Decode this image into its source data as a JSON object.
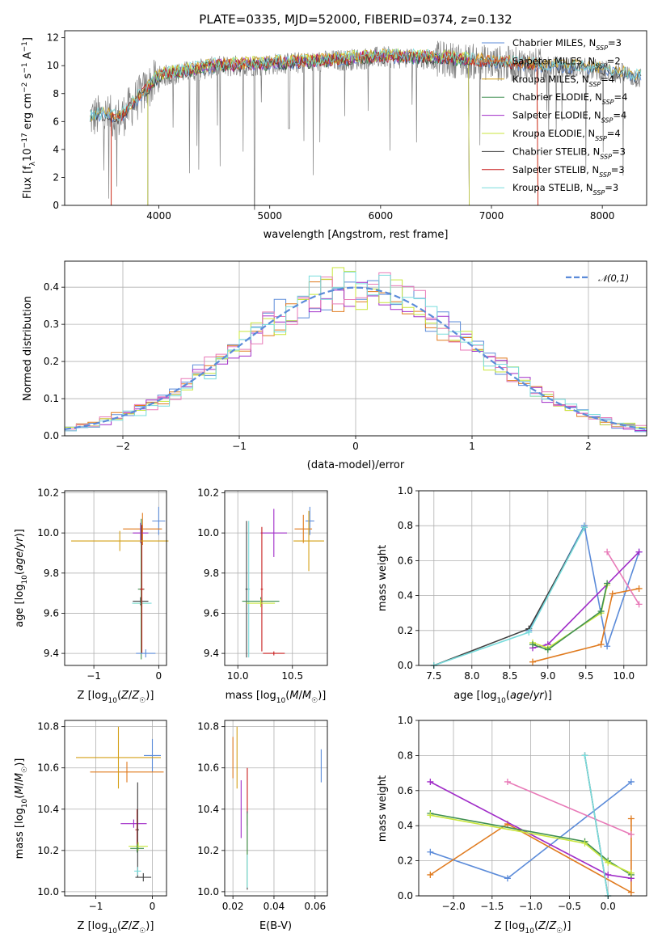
{
  "figure_title": "PLATE=0335, MJD=52000, FIBERID=0374, z=0.132",
  "colors": {
    "Chabrier MILES": "#5b8bd9",
    "Salpeter MILES": "#e07b1f",
    "Kroupa MILES": "#d4a017",
    "Chabrier ELODIE": "#3f8f50",
    "Salpeter ELODIE": "#a02cc8",
    "Kroupa ELODIE": "#c8e63c",
    "Chabrier STELIB": "#404040",
    "Salpeter STELIB": "#c81e1e",
    "Kroupa STELIB": "#78dcdc",
    "data": "#808080",
    "normal": "#5b8bd9"
  },
  "models": [
    "Chabrier MILES",
    "Salpeter MILES",
    "Kroupa MILES",
    "Chabrier ELODIE",
    "Salpeter ELODIE",
    "Kroupa ELODIE",
    "Chabrier STELIB",
    "Salpeter STELIB",
    "Kroupa STELIB"
  ],
  "chart_data": [
    {
      "type": "line",
      "title": "PLATE=0335, MJD=52000, FIBERID=0374, z=0.132",
      "xlabel": "wavelength [Angstrom, rest frame]",
      "ylabel": "Flux [fλ10⁻¹⁷ erg cm⁻² s⁻¹ A⁻¹]",
      "xlim": [
        3150,
        8400
      ],
      "ylim": [
        0,
        12.5
      ],
      "xticks": [
        4000,
        5000,
        6000,
        7000,
        8000
      ],
      "yticks": [
        0,
        2,
        4,
        6,
        8,
        10,
        12
      ],
      "legend_placement": "right",
      "legend": [
        {
          "model": "Chabrier MILES",
          "label": "Chabrier MILES, N",
          "sub": "SSP",
          "suffix": "=3"
        },
        {
          "model": "Salpeter MILES",
          "label": "Salpeter MILES, N",
          "sub": "SSP",
          "suffix": "=2"
        },
        {
          "model": "Kroupa MILES",
          "label": "Kroupa MILES, N",
          "sub": "SSP",
          "suffix": "=4"
        },
        {
          "model": "Chabrier ELODIE",
          "label": "Chabrier ELODIE, N",
          "sub": "SSP",
          "suffix": "=4"
        },
        {
          "model": "Salpeter ELODIE",
          "label": "Salpeter ELODIE, N",
          "sub": "SSP",
          "suffix": "=4"
        },
        {
          "model": "Kroupa ELODIE",
          "label": "Kroupa ELODIE, N",
          "sub": "SSP",
          "suffix": "=4"
        },
        {
          "model": "Chabrier STELIB",
          "label": "Chabrier STELIB, N",
          "sub": "SSP",
          "suffix": "=3"
        },
        {
          "model": "Salpeter STELIB",
          "label": "Salpeter STELIB, N",
          "sub": "SSP",
          "suffix": "=3"
        },
        {
          "model": "Kroupa STELIB",
          "label": "Kroupa STELIB, N",
          "sub": "SSP",
          "suffix": "=3"
        }
      ],
      "continuum": [
        [
          3380,
          6.3
        ],
        [
          3500,
          6.4
        ],
        [
          3650,
          6.2
        ],
        [
          3850,
          8.0
        ],
        [
          4000,
          9.2
        ],
        [
          4200,
          9.5
        ],
        [
          4500,
          9.9
        ],
        [
          5000,
          10.1
        ],
        [
          5500,
          10.3
        ],
        [
          6000,
          10.6
        ],
        [
          6500,
          10.5
        ],
        [
          7000,
          10.2
        ],
        [
          7400,
          10.0
        ],
        [
          8000,
          9.7
        ],
        [
          8350,
          9.1
        ]
      ],
      "model_ranges": {
        "Chabrier MILES": [
          3380,
          8350
        ],
        "Salpeter MILES": [
          3570,
          7420
        ],
        "Kroupa MILES": [
          3380,
          8350
        ],
        "Chabrier ELODIE": [
          3900,
          6800
        ],
        "Salpeter ELODIE": [
          3900,
          6800
        ],
        "Kroupa ELODIE": [
          3900,
          6800
        ],
        "Chabrier STELIB": [
          3380,
          8350
        ],
        "Salpeter STELIB": [
          3570,
          7420
        ],
        "Kroupa STELIB": [
          3380,
          8350
        ]
      }
    },
    {
      "type": "line",
      "xlabel": "(data-model)/error",
      "ylabel": "Normed distribution",
      "xlim": [
        -2.5,
        2.5
      ],
      "ylim": [
        0,
        0.47
      ],
      "xticks": [
        -2,
        -1,
        0,
        1,
        2
      ],
      "yticks": [
        0.0,
        0.1,
        0.2,
        0.3,
        0.4
      ],
      "legend": "𝒩(0,1)",
      "legend_placement": "top-right",
      "bin_width": 0.1
    },
    {
      "type": "scatter",
      "xlabel": "Z [log10(Z/Z☉)]",
      "ylabel": "age  [log10(age/yr)]",
      "xlim": [
        -1.45,
        0.12
      ],
      "ylim": [
        9.34,
        10.21
      ],
      "xticks": [
        -1,
        0
      ],
      "yticks": [
        9.4,
        9.6,
        9.8,
        10.0,
        10.2
      ],
      "points": [
        {
          "model": "Chabrier MILES",
          "x": 0.0,
          "y": 10.06,
          "xerr": 0.1,
          "yerr": 0.07
        },
        {
          "model": "Salpeter MILES",
          "x": -0.25,
          "y": 10.02,
          "xerr": 0.3,
          "yerr": 0.08
        },
        {
          "model": "Kroupa ELODIE",
          "x": -0.27,
          "y": 9.65,
          "xerr": 0.12,
          "yerr": 0.02
        },
        {
          "model": "Chabrier STELIB",
          "x": -0.28,
          "y": 9.66,
          "xerr": 0.12,
          "yerr": 0.02
        },
        {
          "model": "Kroupa STELIB",
          "x": -0.26,
          "y": 9.65,
          "xerr": 0.15,
          "yerr": 0.02
        },
        {
          "model": "Salpeter ELODIE",
          "x": -0.28,
          "y": 10.0,
          "xerr": 0.12,
          "yerr": 0.05
        },
        {
          "model": "Chabrier ELODIE",
          "x": -0.27,
          "y": 9.72,
          "xerr": 0.05,
          "yerr": 0.35
        },
        {
          "model": "Salpeter STELIB",
          "x": -0.26,
          "y": 9.72,
          "xerr": 0.03,
          "yerr": 0.32
        },
        {
          "model": "Chabrier MILES",
          "x": -0.2,
          "y": 9.4,
          "xerr": 0.15,
          "yerr": 0.02
        },
        {
          "model": "Kroupa MILES",
          "x": -0.6,
          "y": 9.96,
          "xerr": 0.75,
          "yerr": 0.05
        }
      ]
    },
    {
      "type": "scatter",
      "xlabel": "mass [log10(M/M☉)]",
      "ylabel": "",
      "xlim": [
        9.88,
        10.82
      ],
      "ylim": [
        9.34,
        10.21
      ],
      "xticks": [
        10.0,
        10.5
      ],
      "yticks": [
        9.4,
        9.6,
        9.8,
        10.0,
        10.2
      ],
      "points": [
        {
          "model": "Chabrier MILES",
          "x": 10.66,
          "y": 10.06,
          "xerr": 0.04,
          "yerr": 0.07
        },
        {
          "model": "Salpeter MILES",
          "x": 10.6,
          "y": 10.02,
          "xerr": 0.08,
          "yerr": 0.07
        },
        {
          "model": "Kroupa MILES",
          "x": 10.65,
          "y": 9.96,
          "xerr": 0.14,
          "yerr": 0.15
        },
        {
          "model": "Salpeter ELODIE",
          "x": 10.33,
          "y": 10.0,
          "xerr": 0.12,
          "yerr": 0.12
        },
        {
          "model": "Chabrier STELIB",
          "x": 10.08,
          "y": 9.72,
          "xerr": 0.01,
          "yerr": 0.34
        },
        {
          "model": "Kroupa STELIB",
          "x": 10.1,
          "y": 9.72,
          "xerr": 0.01,
          "yerr": 0.34
        },
        {
          "model": "Salpeter STELIB",
          "x": 10.22,
          "y": 9.72,
          "xerr": 0.01,
          "yerr": 0.31
        },
        {
          "model": "Chabrier ELODIE",
          "x": 10.21,
          "y": 9.66,
          "xerr": 0.17,
          "yerr": 0.02
        },
        {
          "model": "Kroupa ELODIE",
          "x": 10.21,
          "y": 9.65,
          "xerr": 0.13,
          "yerr": 0.02
        },
        {
          "model": "Salpeter STELIB",
          "x": 10.33,
          "y": 9.4,
          "xerr": 0.1,
          "yerr": 0.01
        }
      ]
    },
    {
      "type": "line",
      "xlabel": "age  [log10(age/yr)]",
      "ylabel": "mass weight",
      "xlim": [
        7.3,
        10.3
      ],
      "ylim": [
        0,
        1.0
      ],
      "xticks": [
        7.5,
        8.0,
        8.5,
        9.0,
        9.5,
        10.0
      ],
      "yticks": [
        0.0,
        0.2,
        0.4,
        0.6,
        0.8,
        1.0
      ],
      "series": [
        {
          "model": "Chabrier MILES",
          "x": [
            8.75,
            9.48,
            9.78,
            10.2
          ],
          "y": [
            0.2,
            0.8,
            0.11,
            0.65
          ]
        },
        {
          "model": "Salpeter MILES",
          "x": [
            8.8,
            9.7,
            9.85,
            10.2
          ],
          "y": [
            0.02,
            0.12,
            0.41,
            0.44
          ]
        },
        {
          "model": "Kroupa MILES",
          "x": [
            9.78,
            10.2
          ],
          "y": [
            0.65,
            0.35
          ]
        },
        {
          "model": "Salpeter ELODIE",
          "x": [
            8.8,
            9.0,
            10.2
          ],
          "y": [
            0.1,
            0.12,
            0.65
          ]
        },
        {
          "model": "Kroupa ELODIE",
          "x": [
            8.8,
            9.0,
            9.7,
            9.78
          ],
          "y": [
            0.13,
            0.1,
            0.3,
            0.46
          ]
        },
        {
          "model": "Chabrier ELODIE",
          "x": [
            8.8,
            9.0,
            9.7,
            9.78
          ],
          "y": [
            0.12,
            0.09,
            0.31,
            0.47
          ]
        },
        {
          "model": "Chabrier STELIB",
          "x": [
            7.5,
            8.75,
            9.48
          ],
          "y": [
            0.0,
            0.21,
            0.79
          ]
        },
        {
          "model": "Kroupa STELIB",
          "x": [
            7.5,
            8.75,
            9.48
          ],
          "y": [
            0.0,
            0.19,
            0.79
          ]
        }
      ]
    },
    {
      "type": "scatter",
      "xlabel": "Z [log10(Z/Z☉)]",
      "ylabel": "mass [log10(M/M☉)]",
      "xlim": [
        -1.55,
        0.25
      ],
      "ylim": [
        9.98,
        10.83
      ],
      "xticks": [
        -1,
        0
      ],
      "yticks": [
        10.0,
        10.2,
        10.4,
        10.6,
        10.8
      ],
      "points": [
        {
          "model": "Chabrier MILES",
          "x": 0.0,
          "y": 10.66,
          "xerr": 0.15,
          "yerr": 0.08
        },
        {
          "model": "Salpeter MILES",
          "x": -0.45,
          "y": 10.58,
          "xerr": 0.65,
          "yerr": 0.05
        },
        {
          "model": "Kroupa MILES",
          "x": -0.6,
          "y": 10.65,
          "xerr": 0.75,
          "yerr": 0.15
        },
        {
          "model": "Salpeter ELODIE",
          "x": -0.33,
          "y": 10.33,
          "xerr": 0.23,
          "yerr": 0.02
        },
        {
          "model": "Salpeter STELIB",
          "x": -0.27,
          "y": 10.3,
          "xerr": 0.03,
          "yerr": 0.1
        },
        {
          "model": "Chabrier STELIB",
          "x": -0.26,
          "y": 10.3,
          "xerr": 0.02,
          "yerr": 0.23
        },
        {
          "model": "Kroupa ELODIE",
          "x": -0.25,
          "y": 10.22,
          "xerr": 0.17,
          "yerr": 0.02
        },
        {
          "model": "Chabrier ELODIE",
          "x": -0.27,
          "y": 10.21,
          "xerr": 0.12,
          "yerr": 0.02
        },
        {
          "model": "Kroupa STELIB",
          "x": -0.26,
          "y": 10.1,
          "xerr": 0.06,
          "yerr": 0.02
        },
        {
          "model": "Chabrier STELIB",
          "x": -0.16,
          "y": 10.07,
          "xerr": 0.14,
          "yerr": 0.02
        }
      ]
    },
    {
      "type": "scatter",
      "xlabel": "E(B-V)",
      "ylabel": "",
      "xlim": [
        0.016,
        0.066
      ],
      "ylim": [
        9.98,
        10.83
      ],
      "xticks": [
        0.02,
        0.04,
        0.06
      ],
      "yticks": [
        10.0,
        10.2,
        10.4,
        10.6,
        10.8
      ],
      "points": [
        {
          "model": "Chabrier MILES",
          "x": 0.063,
          "y": 10.61,
          "yerr": 0.08
        },
        {
          "model": "Salpeter MILES",
          "x": 0.02,
          "y": 10.65,
          "yerr": 0.1
        },
        {
          "model": "Kroupa MILES",
          "x": 0.022,
          "y": 10.65,
          "yerr": 0.15
        },
        {
          "model": "Salpeter ELODIE",
          "x": 0.024,
          "y": 10.4,
          "yerr": 0.14
        },
        {
          "model": "Salpeter STELIB",
          "x": 0.027,
          "y": 10.46,
          "yerr": 0.14
        },
        {
          "model": "Chabrier STELIB",
          "x": 0.027,
          "y": 10.2,
          "yerr": 0.19
        },
        {
          "model": "Kroupa ELODIE",
          "x": 0.027,
          "y": 10.2,
          "yerr": 0.17
        },
        {
          "model": "Chabrier ELODIE",
          "x": 0.027,
          "y": 10.2,
          "yerr": 0.18
        },
        {
          "model": "Kroupa STELIB",
          "x": 0.027,
          "y": 10.1,
          "yerr": 0.08
        }
      ]
    },
    {
      "type": "line",
      "xlabel": "Z [log10(Z/Z☉)]",
      "ylabel": "mass weight",
      "xlim": [
        -2.45,
        0.5
      ],
      "ylim": [
        0,
        1.0
      ],
      "xticks": [
        -2.0,
        -1.5,
        -1.0,
        -0.5,
        0.0
      ],
      "yticks": [
        0.0,
        0.2,
        0.4,
        0.6,
        0.8,
        1.0
      ],
      "series": [
        {
          "model": "Chabrier MILES",
          "x": [
            -2.3,
            -1.3,
            0.3
          ],
          "y": [
            0.25,
            0.1,
            0.65
          ]
        },
        {
          "model": "Salpeter MILES",
          "x": [
            -2.3,
            -1.3,
            0.3,
            0.3
          ],
          "y": [
            0.12,
            0.41,
            0.02,
            0.44
          ]
        },
        {
          "model": "Kroupa MILES",
          "x": [
            -1.3,
            0.3
          ],
          "y": [
            0.65,
            0.35
          ]
        },
        {
          "model": "Salpeter ELODIE",
          "x": [
            -2.3,
            0.0,
            0.3
          ],
          "y": [
            0.65,
            0.12,
            0.1
          ]
        },
        {
          "model": "Chabrier ELODIE",
          "x": [
            -2.3,
            -0.3,
            0.0,
            0.3
          ],
          "y": [
            0.47,
            0.31,
            0.2,
            0.12
          ]
        },
        {
          "model": "Kroupa ELODIE",
          "x": [
            -2.3,
            -0.3,
            0.0,
            0.3
          ],
          "y": [
            0.46,
            0.3,
            0.19,
            0.13
          ]
        },
        {
          "model": "Chabrier STELIB",
          "x": [
            -0.3,
            0.0
          ],
          "y": [
            0.8,
            0.0
          ]
        },
        {
          "model": "Kroupa STELIB",
          "x": [
            -0.3,
            0.0
          ],
          "y": [
            0.8,
            0.0
          ]
        }
      ]
    }
  ]
}
